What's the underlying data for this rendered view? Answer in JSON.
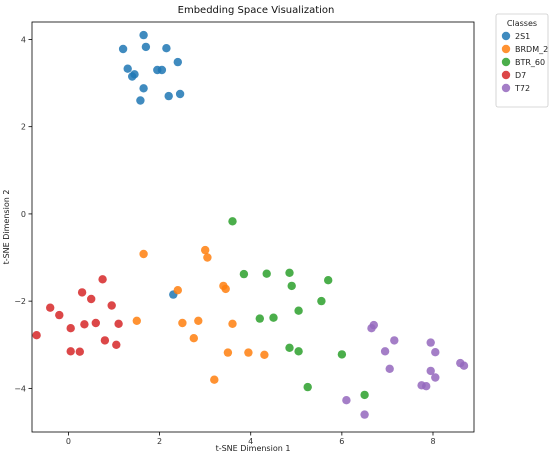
{
  "chart_data": {
    "type": "scatter",
    "title": "Embedding Space Visualization",
    "xlabel": "t-SNE Dimension 1",
    "ylabel": "t-SNE Dimension 2",
    "xlim": [
      -0.8,
      8.9
    ],
    "ylim": [
      -5.0,
      4.4
    ],
    "xticks": [
      0,
      2,
      4,
      6,
      8
    ],
    "yticks": [
      -4,
      -2,
      0,
      2,
      4
    ],
    "grid": false,
    "legend": {
      "title": "Classes",
      "placement": "outside-top-right"
    },
    "series": [
      {
        "name": "2S1",
        "color": "#1f77b4",
        "points": [
          [
            1.65,
            4.1
          ],
          [
            1.2,
            3.78
          ],
          [
            1.7,
            3.83
          ],
          [
            2.15,
            3.8
          ],
          [
            1.3,
            3.33
          ],
          [
            1.45,
            3.2
          ],
          [
            1.4,
            3.15
          ],
          [
            1.95,
            3.3
          ],
          [
            2.05,
            3.3
          ],
          [
            2.4,
            3.48
          ],
          [
            1.65,
            2.88
          ],
          [
            2.2,
            2.7
          ],
          [
            2.45,
            2.75
          ],
          [
            1.58,
            2.6
          ],
          [
            2.3,
            -1.85
          ]
        ]
      },
      {
        "name": "BRDM_2",
        "color": "#ff7f0e",
        "points": [
          [
            1.65,
            -0.92
          ],
          [
            3.0,
            -0.83
          ],
          [
            3.05,
            -1.0
          ],
          [
            2.4,
            -1.75
          ],
          [
            3.4,
            -1.65
          ],
          [
            3.45,
            -1.72
          ],
          [
            1.5,
            -2.45
          ],
          [
            2.5,
            -2.5
          ],
          [
            2.85,
            -2.45
          ],
          [
            3.6,
            -2.52
          ],
          [
            2.75,
            -2.85
          ],
          [
            3.5,
            -3.18
          ],
          [
            3.95,
            -3.18
          ],
          [
            4.3,
            -3.23
          ],
          [
            3.2,
            -3.8
          ]
        ]
      },
      {
        "name": "BTR_60",
        "color": "#2ca02c",
        "points": [
          [
            3.6,
            -0.17
          ],
          [
            3.85,
            -1.38
          ],
          [
            4.35,
            -1.37
          ],
          [
            4.85,
            -1.35
          ],
          [
            5.7,
            -1.52
          ],
          [
            4.9,
            -1.65
          ],
          [
            5.55,
            -2.0
          ],
          [
            5.05,
            -2.22
          ],
          [
            4.2,
            -2.4
          ],
          [
            4.5,
            -2.38
          ],
          [
            4.85,
            -3.07
          ],
          [
            5.05,
            -3.15
          ],
          [
            6.0,
            -3.22
          ],
          [
            5.25,
            -3.97
          ],
          [
            6.5,
            -4.15
          ]
        ]
      },
      {
        "name": "D7",
        "color": "#d62728",
        "points": [
          [
            0.75,
            -1.5
          ],
          [
            0.3,
            -1.8
          ],
          [
            -0.4,
            -2.15
          ],
          [
            0.5,
            -1.95
          ],
          [
            -0.2,
            -2.32
          ],
          [
            0.95,
            -2.1
          ],
          [
            0.05,
            -2.62
          ],
          [
            0.35,
            -2.53
          ],
          [
            0.6,
            -2.5
          ],
          [
            1.1,
            -2.52
          ],
          [
            -0.7,
            -2.78
          ],
          [
            0.8,
            -2.9
          ],
          [
            1.05,
            -3.0
          ],
          [
            0.05,
            -3.15
          ],
          [
            0.25,
            -3.16
          ]
        ]
      },
      {
        "name": "T72",
        "color": "#9467bd",
        "points": [
          [
            6.7,
            -2.55
          ],
          [
            6.65,
            -2.62
          ],
          [
            7.15,
            -2.9
          ],
          [
            7.95,
            -2.95
          ],
          [
            8.05,
            -3.17
          ],
          [
            6.95,
            -3.15
          ],
          [
            7.05,
            -3.55
          ],
          [
            7.95,
            -3.6
          ],
          [
            8.05,
            -3.75
          ],
          [
            7.75,
            -3.93
          ],
          [
            7.85,
            -3.95
          ],
          [
            8.6,
            -3.42
          ],
          [
            8.68,
            -3.48
          ],
          [
            6.1,
            -4.27
          ],
          [
            6.5,
            -4.6
          ]
        ]
      }
    ]
  }
}
